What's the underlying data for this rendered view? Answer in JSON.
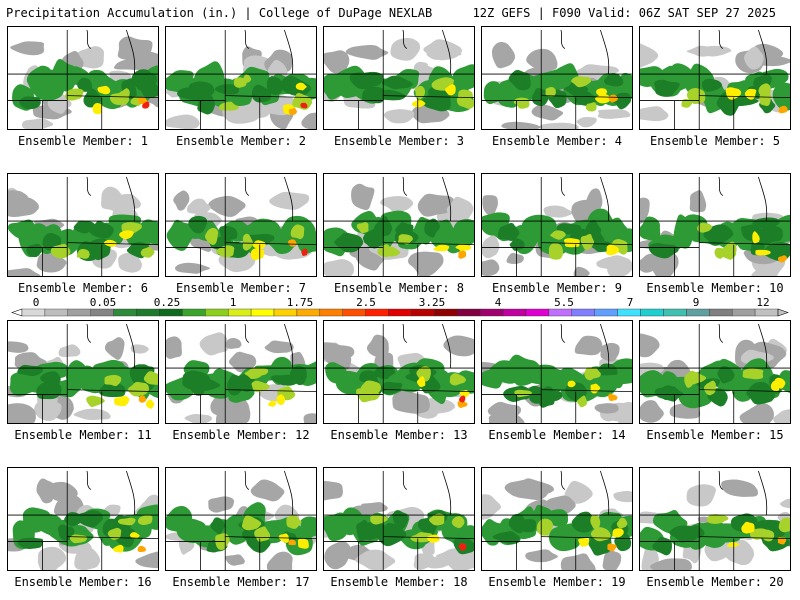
{
  "header": {
    "title": "Precipitation Accumulation (in.) | College of DuPage NEXLAB",
    "run_info": "12Z GEFS | F090 Valid: 06Z SAT SEP 27 2025"
  },
  "panels": [
    {
      "label": "Ensemble Member: 1"
    },
    {
      "label": "Ensemble Member: 2"
    },
    {
      "label": "Ensemble Member: 3"
    },
    {
      "label": "Ensemble Member: 4"
    },
    {
      "label": "Ensemble Member: 5"
    },
    {
      "label": "Ensemble Member: 6"
    },
    {
      "label": "Ensemble Member: 7"
    },
    {
      "label": "Ensemble Member: 8"
    },
    {
      "label": "Ensemble Member: 9"
    },
    {
      "label": "Ensemble Member: 10"
    },
    {
      "label": "Ensemble Member: 11"
    },
    {
      "label": "Ensemble Member: 12"
    },
    {
      "label": "Ensemble Member: 13"
    },
    {
      "label": "Ensemble Member: 14"
    },
    {
      "label": "Ensemble Member: 15"
    },
    {
      "label": "Ensemble Member: 16"
    },
    {
      "label": "Ensemble Member: 17"
    },
    {
      "label": "Ensemble Member: 18"
    },
    {
      "label": "Ensemble Member: 19"
    },
    {
      "label": "Ensemble Member: 20"
    }
  ],
  "colorbar": {
    "labels": [
      "0",
      "0.05",
      "0.25",
      "1",
      "1.75",
      "2.5",
      "3.25",
      "4",
      "5.5",
      "7",
      "9",
      "12"
    ],
    "colors": [
      "#d9d9d9",
      "#bdbdbd",
      "#a0a0a0",
      "#848484",
      "#2e8b3a",
      "#1f7a2c",
      "#116b1f",
      "#3aa52a",
      "#8ccf1f",
      "#d9ef1a",
      "#ffff00",
      "#ffd000",
      "#ffaa00",
      "#ff7f00",
      "#ff5000",
      "#ff2000",
      "#e00000",
      "#b80000",
      "#900000",
      "#800040",
      "#a00070",
      "#c000a0",
      "#e000d0",
      "#c070ff",
      "#8080ff",
      "#60a0ff",
      "#40e0ff",
      "#20d0d0",
      "#40c0b0",
      "#60a0a0",
      "#808080",
      "#a0a0a0",
      "#c0c0c0"
    ]
  }
}
